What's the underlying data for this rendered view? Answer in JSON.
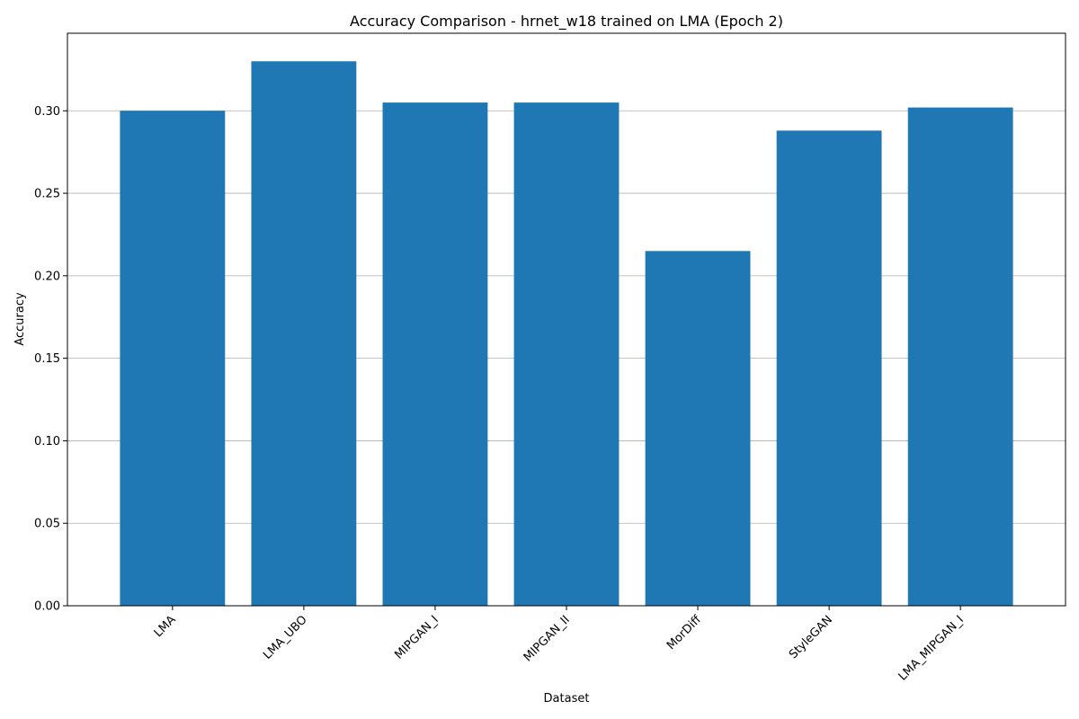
{
  "chart_data": {
    "type": "bar",
    "title": "Accuracy Comparison - hrnet_w18 trained on LMA (Epoch 2)",
    "xlabel": "Dataset",
    "ylabel": "Accuracy",
    "categories": [
      "LMA",
      "LMA_UBO",
      "MIPGAN_I",
      "MIPGAN_II",
      "MorDiff",
      "StyleGAN",
      "LMA_MIPGAN_I"
    ],
    "values": [
      0.3,
      0.33,
      0.305,
      0.305,
      0.215,
      0.288,
      0.302
    ],
    "ylim": [
      0,
      0.347
    ],
    "yticks": [
      0.0,
      0.05,
      0.1,
      0.15,
      0.2,
      0.25,
      0.3
    ],
    "ytick_labels": [
      "0.00",
      "0.05",
      "0.10",
      "0.15",
      "0.20",
      "0.25",
      "0.30"
    ],
    "grid": "y-axis",
    "bar_color": "#1f77b4"
  }
}
